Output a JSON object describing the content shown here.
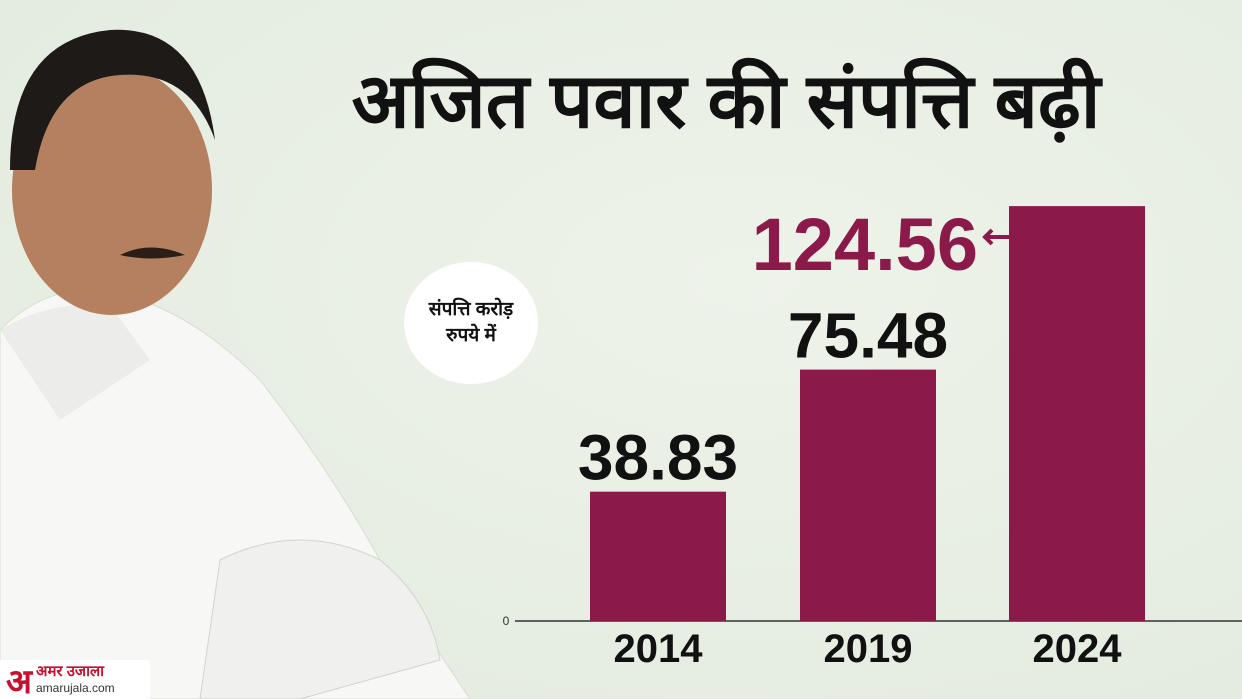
{
  "chart_data": {
    "type": "bar",
    "title": "अजित पवार की संपत्ति बढ़ी",
    "y_label": "संपत्ति करोड़ रुपये में",
    "categories": [
      "2014",
      "2019",
      "2024"
    ],
    "values": [
      38.83,
      75.48,
      124.56
    ],
    "color": "#8b1a4a",
    "ylim": [
      0,
      130
    ],
    "yticks": [
      0
    ],
    "grid": false
  },
  "logo": {
    "mark": "अ",
    "name": "अमर उजाला",
    "url": "amarujala.com"
  }
}
